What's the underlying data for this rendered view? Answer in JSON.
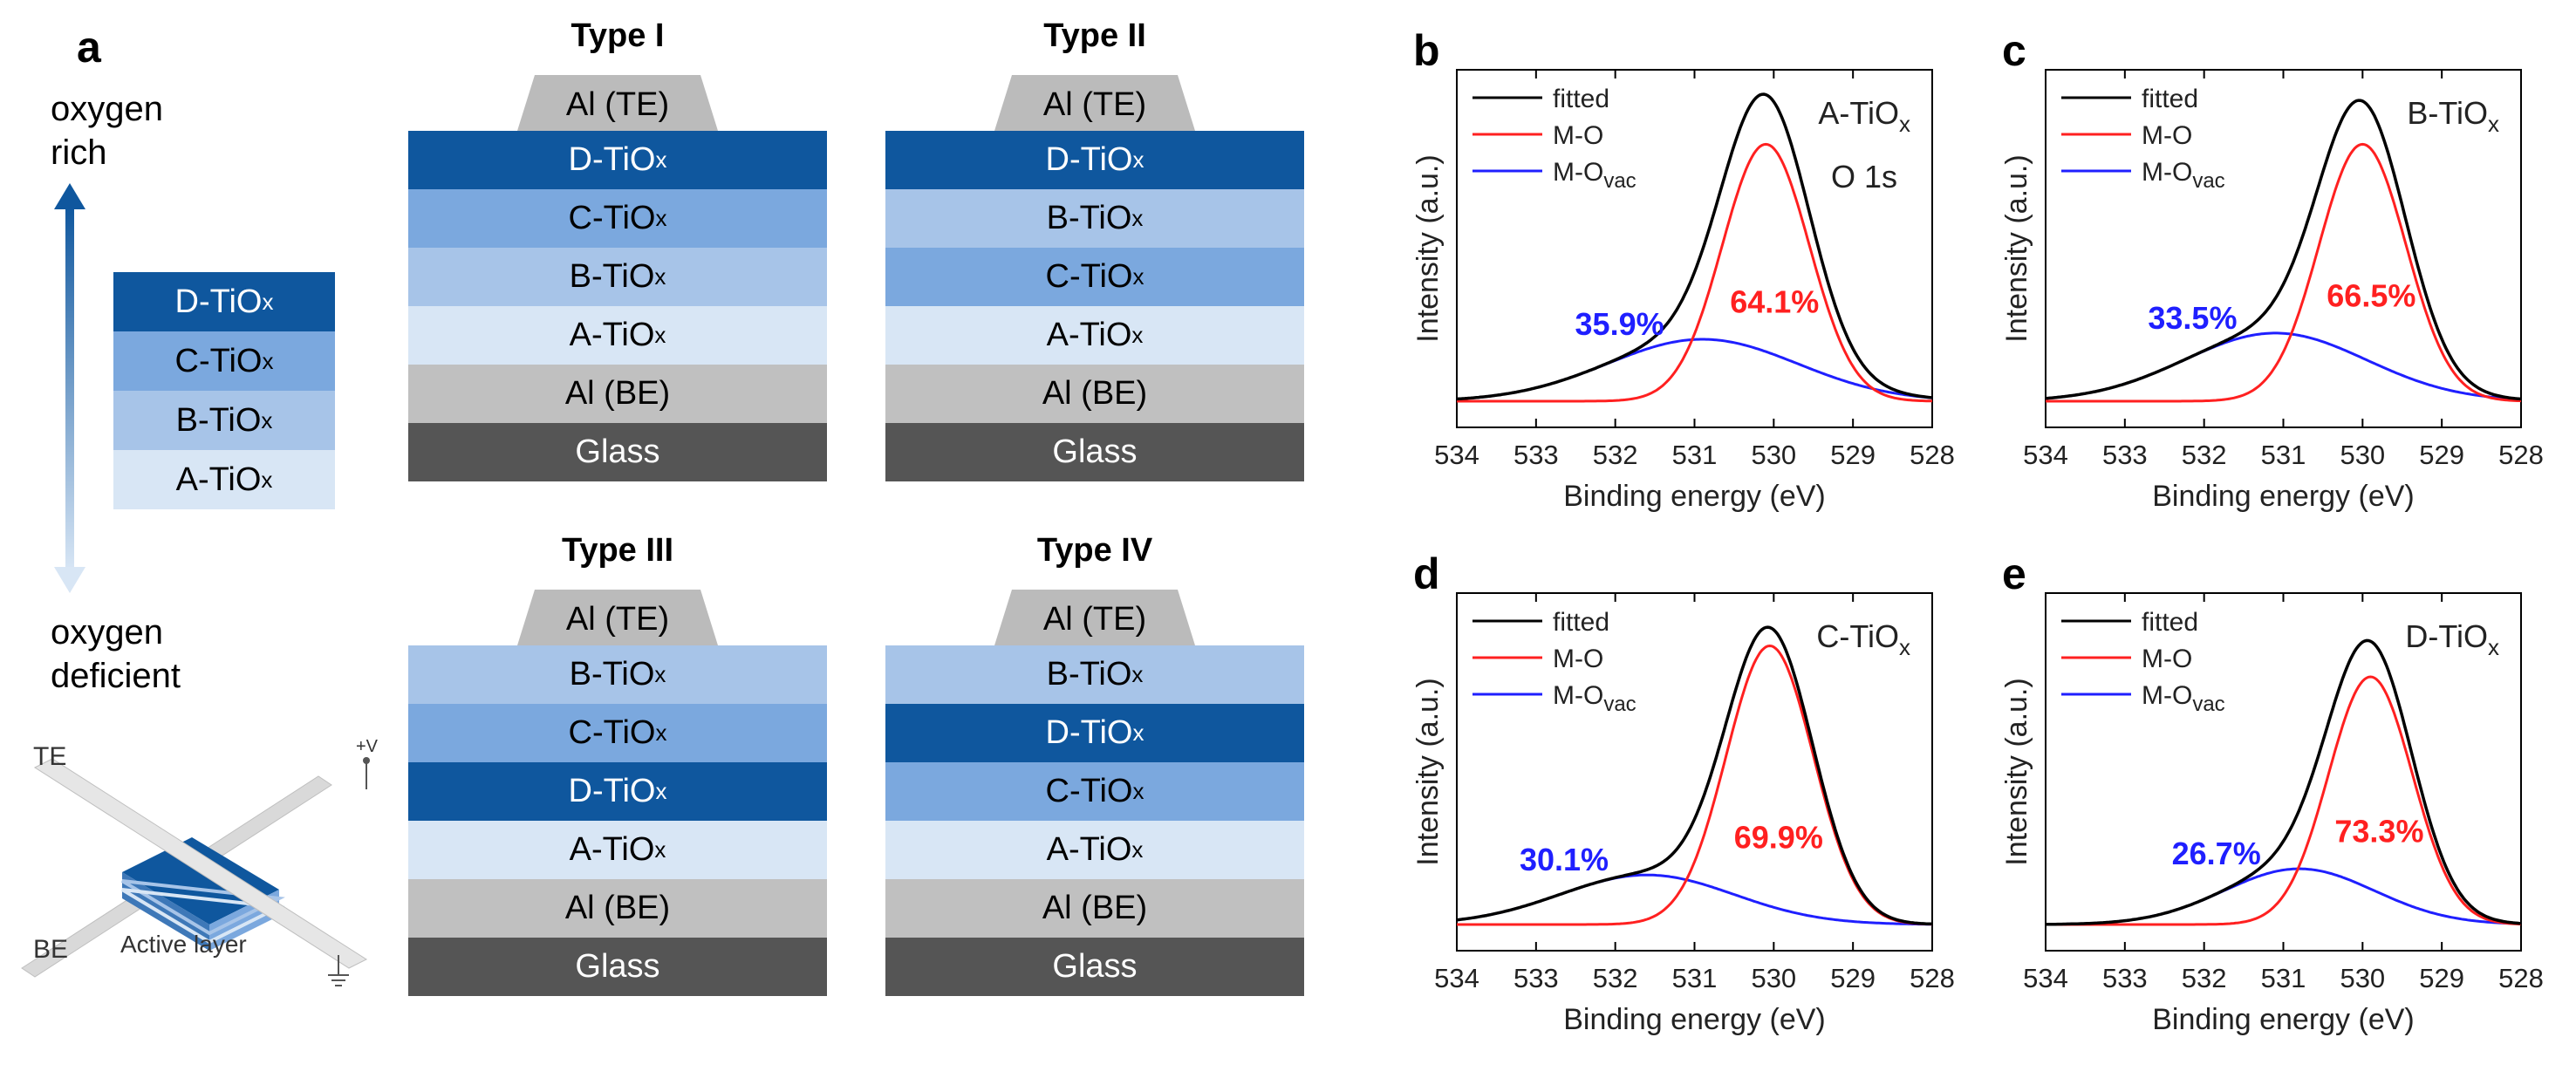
{
  "panel_a": {
    "letter": "a",
    "oxygen_rich": "oxygen rich",
    "oxygen_deficient": "oxygen deficient",
    "legend": [
      {
        "label": "D-TiOx",
        "key": "D"
      },
      {
        "label": "C-TiOx",
        "key": "C"
      },
      {
        "label": "B-TiOx",
        "key": "B"
      },
      {
        "label": "A-TiOx",
        "key": "A"
      }
    ],
    "device": {
      "te": "TE",
      "be": "BE",
      "active": "Active layer",
      "plus_v": "+V"
    },
    "stacks": [
      {
        "title": "Type I",
        "layers": [
          "D",
          "C",
          "B",
          "A"
        ]
      },
      {
        "title": "Type II",
        "layers": [
          "D",
          "B",
          "C",
          "A"
        ]
      },
      {
        "title": "Type III",
        "layers": [
          "B",
          "C",
          "D",
          "A"
        ]
      },
      {
        "title": "Type IV",
        "layers": [
          "B",
          "D",
          "C",
          "A"
        ]
      }
    ],
    "te_label": "Al (TE)",
    "be_label": "Al (BE)",
    "glass_label": "Glass",
    "colors": {
      "D": "#0f579e",
      "C": "#7ba8de",
      "B": "#a7c4e8",
      "A": "#d8e6f5",
      "be": "#c0c0c0",
      "te": "#bbbbbb",
      "glass": "#555555"
    }
  },
  "chart_data": [
    {
      "panel": "b",
      "type": "line",
      "sample": "A-TiOx",
      "extra_label": "O 1s",
      "title": "A-TiOx",
      "xlabel": "Binding energy (eV)",
      "ylabel": "Intensity (a.u.)",
      "xlim": [
        534,
        528
      ],
      "xticks": [
        "534",
        "533",
        "532",
        "531",
        "530",
        "529",
        "528"
      ],
      "legend": [
        "fitted",
        "M-O",
        "M-Ovac"
      ],
      "mo": {
        "center": 530.1,
        "amp": 0.83,
        "sigma": 0.55,
        "pct": "64.1%"
      },
      "vac": {
        "center": 530.9,
        "amp": 0.2,
        "sigma": 1.2,
        "pct": "35.9%"
      }
    },
    {
      "panel": "c",
      "type": "line",
      "sample": "B-TiOx",
      "extra_label": "",
      "title": "B-TiOx",
      "xlabel": "Binding energy (eV)",
      "ylabel": "Intensity (a.u.)",
      "xlim": [
        534,
        528
      ],
      "xticks": [
        "534",
        "533",
        "532",
        "531",
        "530",
        "529",
        "528"
      ],
      "legend": [
        "fitted",
        "M-O",
        "M-Ovac"
      ],
      "mo": {
        "center": 530.0,
        "amp": 0.83,
        "sigma": 0.55,
        "pct": "66.5%"
      },
      "vac": {
        "center": 531.1,
        "amp": 0.22,
        "sigma": 1.15,
        "pct": "33.5%"
      }
    },
    {
      "panel": "d",
      "type": "line",
      "sample": "C-TiOx",
      "extra_label": "",
      "title": "C-TiOx",
      "xlabel": "Binding energy (eV)",
      "ylabel": "Intensity (a.u.)",
      "xlim": [
        534,
        528
      ],
      "xticks": [
        "534",
        "533",
        "532",
        "531",
        "530",
        "529",
        "528"
      ],
      "legend": [
        "fitted",
        "M-O",
        "M-Ovac"
      ],
      "mo": {
        "center": 530.05,
        "amp": 0.9,
        "sigma": 0.55,
        "pct": "69.9%"
      },
      "vac": {
        "center": 531.6,
        "amp": 0.16,
        "sigma": 1.1,
        "pct": "30.1%"
      }
    },
    {
      "panel": "e",
      "type": "line",
      "sample": "D-TiOx",
      "extra_label": "",
      "title": "D-TiOx",
      "xlabel": "Binding energy (eV)",
      "ylabel": "Intensity (a.u.)",
      "xlim": [
        534,
        528
      ],
      "xticks": [
        "534",
        "533",
        "532",
        "531",
        "530",
        "529",
        "528"
      ],
      "legend": [
        "fitted",
        "M-O",
        "M-Ovac"
      ],
      "mo": {
        "center": 529.9,
        "amp": 0.8,
        "sigma": 0.53,
        "pct": "73.3%"
      },
      "vac": {
        "center": 530.8,
        "amp": 0.18,
        "sigma": 0.95,
        "pct": "26.7%"
      }
    }
  ]
}
